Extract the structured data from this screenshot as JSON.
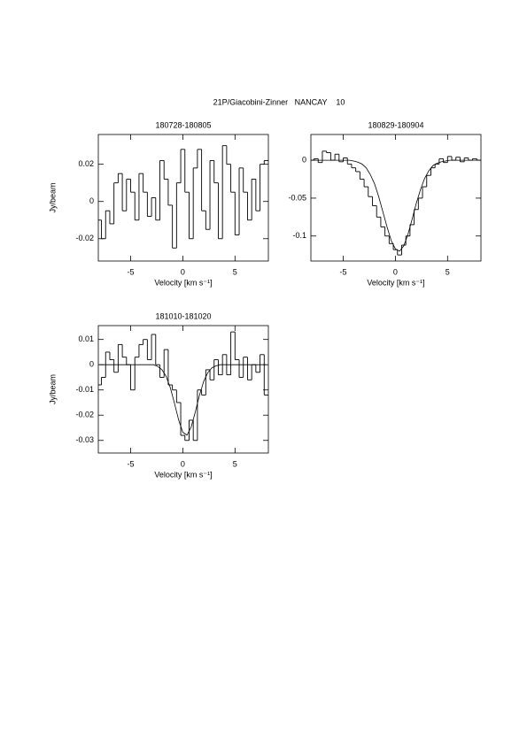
{
  "title": "21P/Giacobini-Zinner   NANCAY    10",
  "chart_data": [
    {
      "type": "line",
      "title": "180728-180805",
      "xlabel": "Velocity [km s⁻¹]",
      "ylabel": "Jy/beam",
      "x": [
        -8,
        -7.6,
        -7.2,
        -6.8,
        -6.4,
        -6,
        -5.6,
        -5.2,
        -4.8,
        -4.4,
        -4,
        -3.6,
        -3.2,
        -2.8,
        -2.4,
        -2,
        -1.6,
        -1.2,
        -0.8,
        -0.4,
        0,
        0.4,
        0.8,
        1.2,
        1.6,
        2,
        2.4,
        2.8,
        3.2,
        3.6,
        4,
        4.4,
        4.8,
        5.2,
        5.6,
        6,
        6.4,
        6.8,
        7.2,
        7.6,
        8
      ],
      "series": [
        {
          "color": "#000000",
          "drawstyle": "steps-mid",
          "values": [
            -0.01,
            -0.02,
            -0.005,
            -0.012,
            0.01,
            0.015,
            -0.005,
            0.012,
            0.005,
            -0.01,
            0.015,
            0.005,
            -0.008,
            0.002,
            -0.01,
            0.022,
            0.012,
            -0.002,
            -0.025,
            0.01,
            0.028,
            0.005,
            -0.02,
            0.018,
            0.028,
            -0.005,
            -0.015,
            0.022,
            0.01,
            -0.02,
            0.03,
            0.02,
            0.005,
            -0.018,
            0.018,
            0.005,
            -0.01,
            0.012,
            -0.005,
            0.02,
            0.022
          ]
        }
      ],
      "xlim": [
        -8.1,
        8.2
      ],
      "ylim": [
        -0.032,
        0.036
      ],
      "xticks": [
        -5,
        0,
        5
      ],
      "yticks": [
        -0.02,
        0,
        0.02
      ]
    },
    {
      "type": "line",
      "title": "180829-180904",
      "xlabel": "Velocity [km s⁻¹]",
      "x": [
        -8,
        -7.6,
        -7.2,
        -6.8,
        -6.4,
        -6,
        -5.6,
        -5.2,
        -4.8,
        -4.4,
        -4,
        -3.6,
        -3.2,
        -2.8,
        -2.4,
        -2,
        -1.6,
        -1.2,
        -0.8,
        -0.4,
        0,
        0.4,
        0.8,
        1.2,
        1.6,
        2,
        2.4,
        2.8,
        3.2,
        3.6,
        4,
        4.4,
        4.8,
        5.2,
        5.6,
        6,
        6.4,
        6.8,
        7.2,
        7.6,
        8
      ],
      "series": [
        {
          "color": "#000000",
          "drawstyle": "steps-mid",
          "values": [
            0,
            0.002,
            -0.003,
            0.012,
            0.01,
            0,
            0.008,
            -0.002,
            0.003,
            -0.005,
            -0.01,
            -0.015,
            -0.025,
            -0.035,
            -0.048,
            -0.06,
            -0.075,
            -0.088,
            -0.1,
            -0.11,
            -0.118,
            -0.125,
            -0.112,
            -0.1,
            -0.085,
            -0.065,
            -0.05,
            -0.035,
            -0.02,
            -0.01,
            -0.005,
            0.002,
            -0.003,
            0.005,
            0,
            0.004,
            -0.002,
            0.003,
            0,
            0.002,
            0
          ]
        },
        {
          "color": "#000000",
          "drawstyle": "default",
          "values": [
            0,
            0,
            0,
            0,
            0,
            0,
            0,
            0,
            0,
            0,
            -0.001,
            -0.0025,
            -0.005,
            -0.01,
            -0.019,
            -0.031,
            -0.048,
            -0.068,
            -0.088,
            -0.106,
            -0.117,
            -0.12,
            -0.113,
            -0.098,
            -0.078,
            -0.057,
            -0.039,
            -0.024,
            -0.014,
            -0.007,
            -0.004,
            -0.002,
            -0.001,
            0,
            0,
            0,
            0,
            0,
            0,
            0,
            0
          ]
        }
      ],
      "xlim": [
        -8.1,
        8.2
      ],
      "ylim": [
        -0.133,
        0.034
      ],
      "xticks": [
        -5,
        0,
        5
      ],
      "yticks": [
        -0.1,
        -0.05,
        0
      ]
    },
    {
      "type": "line",
      "title": "181010-181020",
      "xlabel": "Velocity [km s⁻¹]",
      "ylabel": "Jy/beam",
      "x": [
        -8,
        -7.6,
        -7.2,
        -6.8,
        -6.4,
        -6,
        -5.6,
        -5.2,
        -4.8,
        -4.4,
        -4,
        -3.6,
        -3.2,
        -2.8,
        -2.4,
        -2,
        -1.6,
        -1.2,
        -0.8,
        -0.4,
        0,
        0.4,
        0.8,
        1.2,
        1.6,
        2,
        2.4,
        2.8,
        3.2,
        3.6,
        4,
        4.4,
        4.8,
        5.2,
        5.6,
        6,
        6.4,
        6.8,
        7.2,
        7.6,
        8
      ],
      "series": [
        {
          "color": "#000000",
          "drawstyle": "steps-mid",
          "values": [
            -0.008,
            -0.005,
            0.005,
            0.002,
            -0.003,
            0.008,
            0.003,
            0,
            -0.01,
            0.003,
            0.008,
            0.01,
            0.002,
            0.012,
            0,
            -0.005,
            0.006,
            -0.008,
            -0.01,
            -0.015,
            -0.028,
            -0.03,
            -0.022,
            -0.03,
            -0.01,
            -0.012,
            -0.002,
            -0.006,
            0.002,
            -0.004,
            0.004,
            -0.004,
            0.013,
            0.002,
            -0.005,
            0.003,
            -0.006,
            0,
            -0.003,
            0.004,
            -0.012
          ]
        },
        {
          "color": "#000000",
          "drawstyle": "default",
          "values": [
            0,
            0,
            0,
            0,
            0,
            0,
            0,
            0,
            0,
            0,
            0,
            0,
            0,
            0,
            -0.0007,
            -0.002,
            -0.0046,
            -0.0091,
            -0.0153,
            -0.0219,
            -0.0268,
            -0.0279,
            -0.0247,
            -0.0187,
            -0.012,
            -0.0066,
            -0.0031,
            -0.0012,
            -0.0004,
            0,
            0,
            0,
            0,
            0,
            0,
            0,
            0,
            0,
            0,
            0,
            0
          ]
        }
      ],
      "xlim": [
        -8.1,
        8.2
      ],
      "ylim": [
        -0.035,
        0.0155
      ],
      "xticks": [
        -5,
        0,
        5
      ],
      "yticks": [
        -0.03,
        -0.02,
        -0.01,
        0,
        0.01
      ]
    }
  ]
}
